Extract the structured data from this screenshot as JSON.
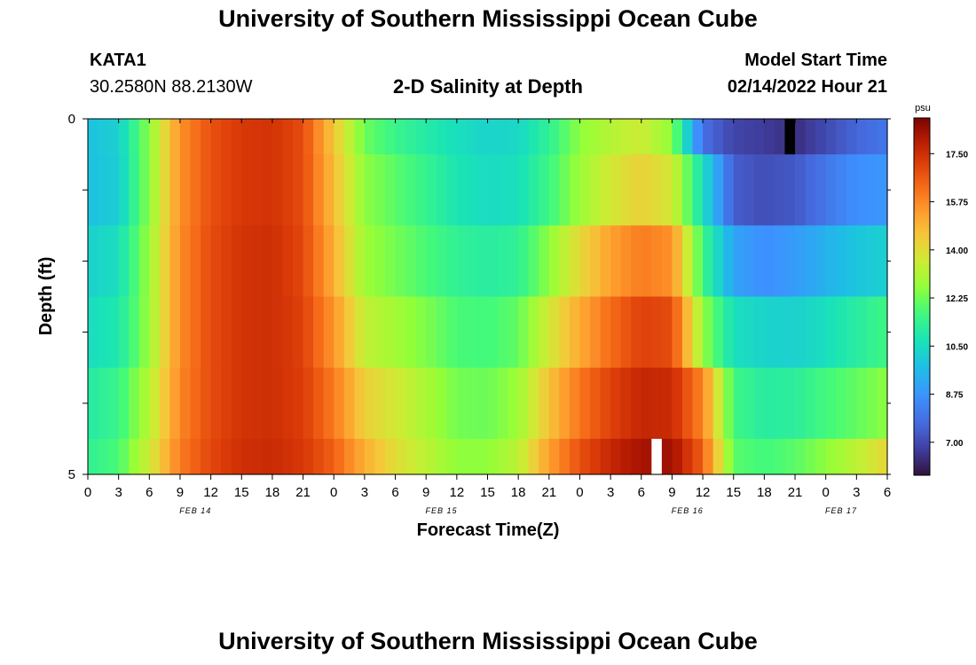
{
  "header": {
    "title": "University of Southern Mississippi Ocean Cube",
    "station": "KATA1",
    "coords": "30.2580N  88.2130W",
    "subtitle": "2-D Salinity at Depth",
    "model_label": "Model Start Time",
    "model_time": "02/14/2022 Hour 21"
  },
  "footer": {
    "title": "University of Southern Mississippi Ocean Cube"
  },
  "colorbar": {
    "unit": "psu",
    "ticks": [
      "17.50",
      "15.75",
      "14.00",
      "12.25",
      "10.50",
      "8.75",
      "7.00"
    ],
    "tick_values": [
      17.5,
      15.75,
      14.0,
      12.25,
      10.5,
      8.75,
      7.0
    ],
    "range": [
      5.8,
      18.8
    ]
  },
  "chart_data": {
    "type": "heatmap",
    "title": "2-D Salinity at Depth",
    "xlabel": "Forecast Time(Z)",
    "ylabel": "Depth (ft)",
    "x_range_hours": [
      0,
      78
    ],
    "x_step_hours": 1,
    "x_tick_labels": [
      "0",
      "3",
      "6",
      "9",
      "12",
      "15",
      "18",
      "21",
      "0",
      "3",
      "6",
      "9",
      "12",
      "15",
      "18",
      "21",
      "0",
      "3",
      "6",
      "9",
      "12",
      "15",
      "18",
      "21",
      "0",
      "3",
      "6"
    ],
    "day_labels": [
      {
        "label": "FEB 14",
        "hour": 10.5
      },
      {
        "label": "FEB 15",
        "hour": 34.5
      },
      {
        "label": "FEB 16",
        "hour": 58.5
      },
      {
        "label": "FEB 17",
        "hour": 73.5
      }
    ],
    "y_tick_labels": [
      "0",
      "5"
    ],
    "y_range": [
      0,
      5
    ],
    "depth_bands": [
      {
        "top": 0.0,
        "bottom": 0.5
      },
      {
        "top": 0.5,
        "bottom": 1.5
      },
      {
        "top": 1.5,
        "bottom": 2.5
      },
      {
        "top": 2.5,
        "bottom": 3.5
      },
      {
        "top": 3.5,
        "bottom": 4.5
      },
      {
        "top": 4.5,
        "bottom": 5.0
      }
    ],
    "keyframes_hours": [
      0,
      3,
      6,
      9,
      12,
      15,
      18,
      21,
      24,
      27,
      30,
      33,
      36,
      39,
      42,
      45,
      48,
      51,
      54,
      57,
      60,
      63,
      66,
      69,
      72,
      75,
      78
    ],
    "keyframes_salinity_psu": [
      [
        9.8,
        10.2,
        12.6,
        15.6,
        16.8,
        17.3,
        17.4,
        16.9,
        14.5,
        12.2,
        11.5,
        11.0,
        10.6,
        10.3,
        10.4,
        11.3,
        12.6,
        13.2,
        13.6,
        12.6,
        7.8,
        6.9,
        6.7,
        6.4,
        7.0,
        7.6,
        8.0
      ],
      [
        9.8,
        10.1,
        12.6,
        15.6,
        16.8,
        17.3,
        17.4,
        16.9,
        14.7,
        12.6,
        12.0,
        11.4,
        10.8,
        10.5,
        10.6,
        11.6,
        12.8,
        13.7,
        14.3,
        13.7,
        10.6,
        7.4,
        7.1,
        7.3,
        8.0,
        8.6,
        8.8
      ],
      [
        10.2,
        10.6,
        12.8,
        15.7,
        16.9,
        17.4,
        17.5,
        17.0,
        15.0,
        12.8,
        12.3,
        11.8,
        11.3,
        11.1,
        11.3,
        12.6,
        14.1,
        15.3,
        16.0,
        15.6,
        11.6,
        9.1,
        8.6,
        8.9,
        9.4,
        9.9,
        10.2
      ],
      [
        10.5,
        10.9,
        12.8,
        15.7,
        16.9,
        17.4,
        17.5,
        17.1,
        15.5,
        13.4,
        12.9,
        12.4,
        11.8,
        11.7,
        12.1,
        13.7,
        15.1,
        16.3,
        17.1,
        16.9,
        12.7,
        10.6,
        10.3,
        10.2,
        10.6,
        11.1,
        11.6
      ],
      [
        11.0,
        11.5,
        13.2,
        15.8,
        16.9,
        17.4,
        17.5,
        17.2,
        16.0,
        14.3,
        13.7,
        13.0,
        12.3,
        12.2,
        12.8,
        14.6,
        16.1,
        17.1,
        17.7,
        17.6,
        15.8,
        11.6,
        11.1,
        11.2,
        11.7,
        12.1,
        12.6
      ],
      [
        11.3,
        11.8,
        13.6,
        16.0,
        17.0,
        17.5,
        17.6,
        17.3,
        16.5,
        15.0,
        14.0,
        13.3,
        12.6,
        12.6,
        13.3,
        15.3,
        16.8,
        17.7,
        18.2,
        18.3,
        16.5,
        12.0,
        11.7,
        12.0,
        12.6,
        13.3,
        14.2
      ]
    ],
    "markers": [
      {
        "band": 0,
        "hour": 68,
        "color": "#000000"
      },
      {
        "band": 5,
        "hour": 55,
        "color": "#ffffff"
      }
    ]
  }
}
